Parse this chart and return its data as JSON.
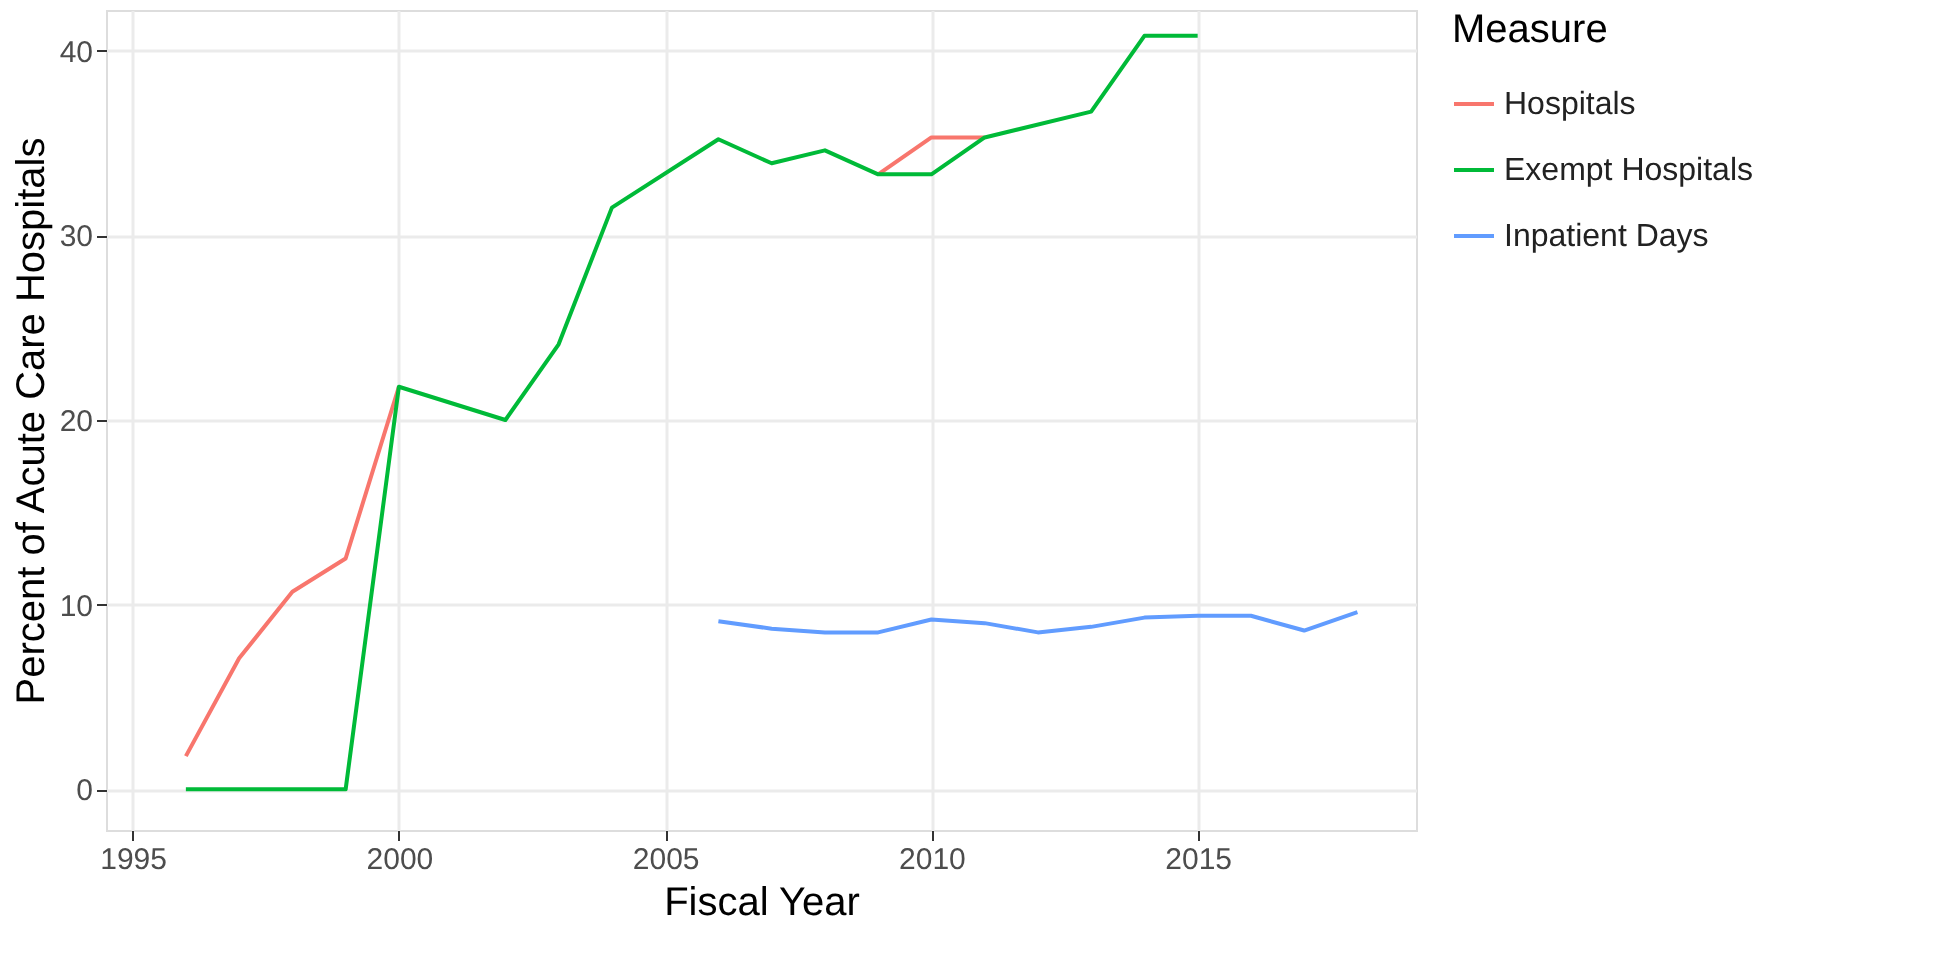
{
  "chart_data": {
    "type": "line",
    "xlabel": "Fiscal Year",
    "ylabel": "Percent of Acute Care Hospitals",
    "legend_title": "Measure",
    "legend": "right",
    "grid": true,
    "xlim": [
      1994.5,
      2019.1
    ],
    "xticks": [
      1995,
      2000,
      2005,
      2010,
      2015
    ],
    "ylim": [
      -2.2,
      42.2
    ],
    "yticks": [
      0,
      10,
      20,
      30,
      40
    ],
    "series": [
      {
        "name": "Hospitals",
        "color": "#f8766d",
        "x": [
          1996,
          1997,
          1998,
          1999,
          2000,
          2002,
          2003,
          2004,
          2006,
          2007,
          2008,
          2009,
          2010,
          2011
        ],
        "values": [
          1.8,
          7.1,
          10.7,
          12.5,
          21.8,
          null,
          null,
          null,
          null,
          null,
          null,
          33.3,
          35.3,
          35.3
        ]
      },
      {
        "name": "Exempt Hospitals",
        "color": "#00ba38",
        "x": [
          1996,
          1997,
          1998,
          1999,
          2000,
          2002,
          2003,
          2004,
          2006,
          2007,
          2008,
          2009,
          2010,
          2011,
          2013,
          2014,
          2015
        ],
        "values": [
          0,
          0,
          0,
          0,
          21.8,
          20.0,
          24.1,
          31.5,
          35.2,
          33.9,
          34.6,
          33.3,
          33.3,
          35.3,
          36.7,
          40.8,
          40.8
        ]
      },
      {
        "name": "Inpatient Days",
        "color": "#619cff",
        "x": [
          2006,
          2007,
          2008,
          2009,
          2010,
          2011,
          2012,
          2013,
          2014,
          2015,
          2016,
          2017,
          2018
        ],
        "values": [
          9.1,
          8.7,
          8.5,
          8.5,
          9.2,
          9.0,
          8.5,
          8.8,
          9.3,
          9.4,
          9.4,
          8.6,
          9.6
        ]
      }
    ]
  }
}
